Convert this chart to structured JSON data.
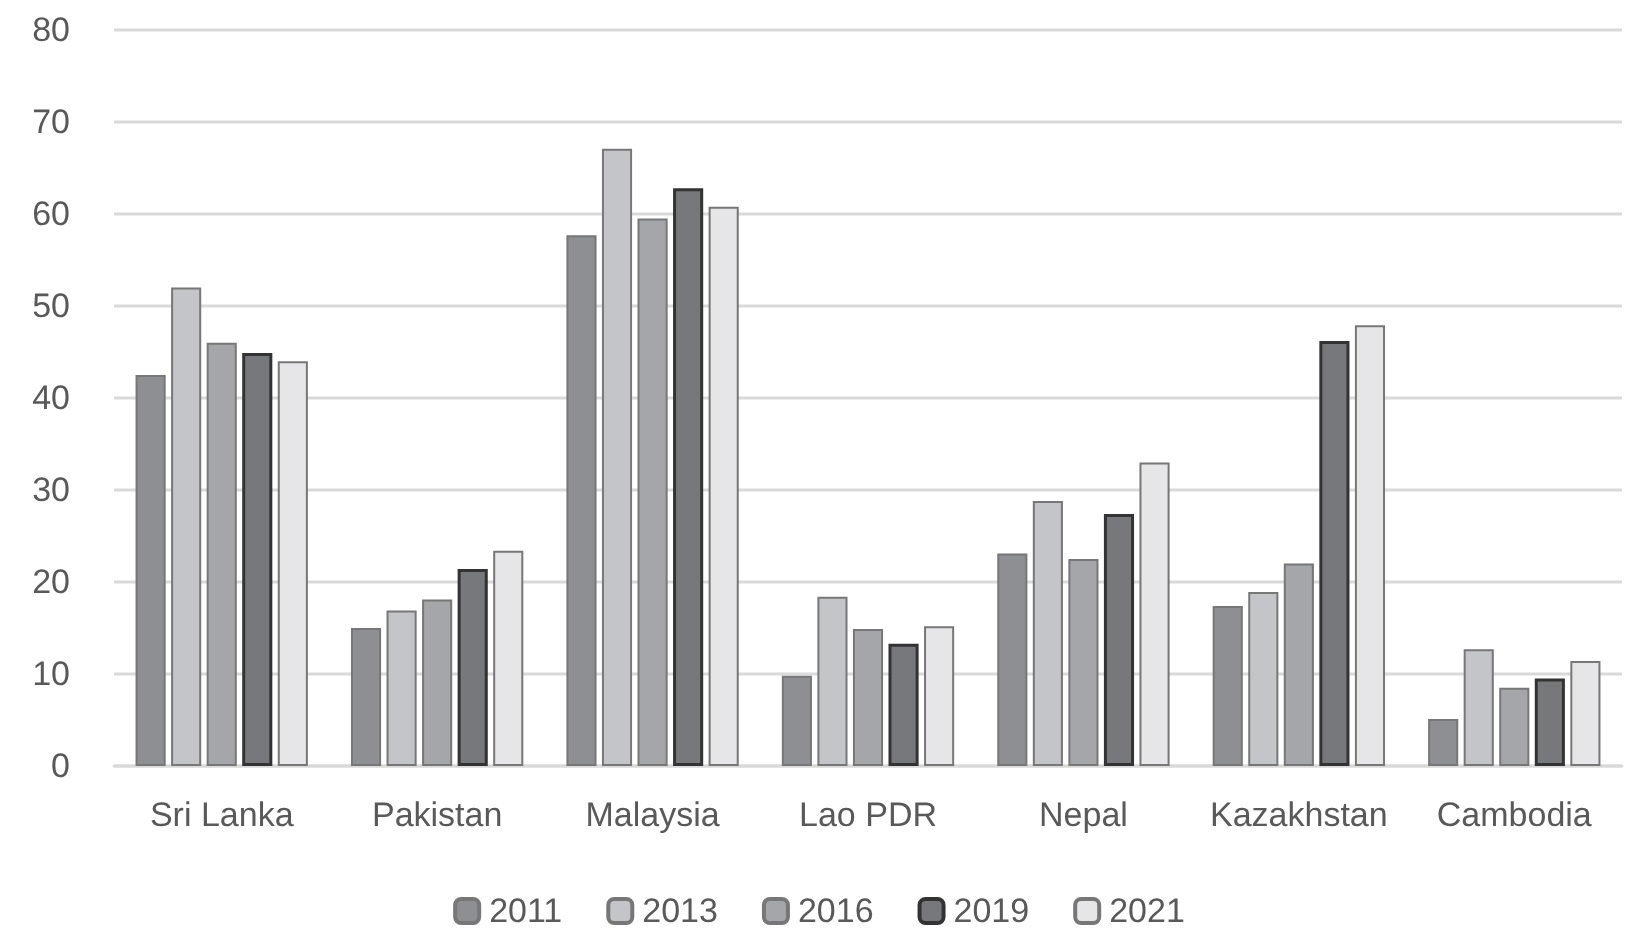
{
  "chart_data": {
    "type": "bar",
    "categories": [
      "Sri Lanka",
      "Pakistan",
      "Malaysia",
      "Lao PDR",
      "Nepal",
      "Kazakhstan",
      "Cambodia"
    ],
    "series": [
      {
        "name": "2011",
        "color": "#8e8f93",
        "values": [
          42.5,
          15.0,
          57.7,
          9.8,
          23.1,
          17.4,
          5.1
        ]
      },
      {
        "name": "2013",
        "color": "#c4c5c8",
        "values": [
          52.0,
          16.9,
          67.1,
          18.4,
          28.8,
          18.9,
          12.7
        ]
      },
      {
        "name": "2016",
        "color": "#a5a6aa",
        "values": [
          46.0,
          18.1,
          59.5,
          14.9,
          22.5,
          22.0,
          8.5
        ]
      },
      {
        "name": "2019",
        "color": "#77787c",
        "values": [
          44.9,
          21.4,
          62.8,
          13.3,
          27.4,
          46.2,
          9.5
        ]
      },
      {
        "name": "2021",
        "color": "#e6e6e8",
        "values": [
          44.0,
          23.4,
          60.8,
          15.2,
          33.0,
          47.9,
          11.4
        ]
      }
    ],
    "ylim": [
      0,
      80
    ],
    "yticks": [
      0,
      10,
      20,
      30,
      40,
      50,
      60,
      70,
      80
    ],
    "grid": "y",
    "legend": "bottom"
  }
}
